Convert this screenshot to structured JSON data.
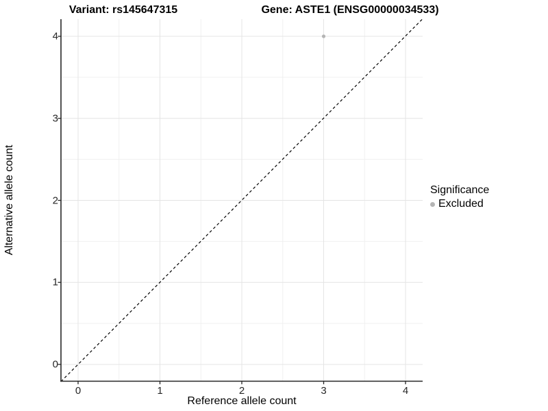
{
  "figure": {
    "title_left": "Variant: rs145647315",
    "title_right": "Gene: ASTE1 (ENSG00000034533)"
  },
  "chart_data": {
    "type": "scatter",
    "title_left": "Variant: rs145647315",
    "title_right": "Gene: ASTE1 (ENSG00000034533)",
    "xlabel": "Reference allele count",
    "ylabel": "Alternative allele count",
    "x_ticks": [
      0,
      1,
      2,
      3,
      4
    ],
    "y_ticks": [
      0,
      1,
      2,
      3,
      4
    ],
    "xlim": [
      -0.21,
      4.21
    ],
    "ylim": [
      -0.21,
      4.21
    ],
    "grid": {
      "major": [
        0,
        1,
        2,
        3,
        4
      ],
      "minor": [
        0.5,
        1.5,
        2.5,
        3.5
      ],
      "major_color": "#e4e4e4",
      "minor_color": "#f0f0f0"
    },
    "reference_line": {
      "type": "identity y=x",
      "style": "dashed",
      "color": "#000000"
    },
    "series": [
      {
        "name": "Excluded",
        "color": "#b5b5b5",
        "points": [
          [
            3,
            4
          ]
        ]
      }
    ],
    "legend": {
      "title": "Significance",
      "position": "right",
      "entries": [
        {
          "label": "Excluded",
          "color": "#b5b5b5"
        }
      ]
    },
    "axis_color": "#262626",
    "background": "#ffffff"
  }
}
